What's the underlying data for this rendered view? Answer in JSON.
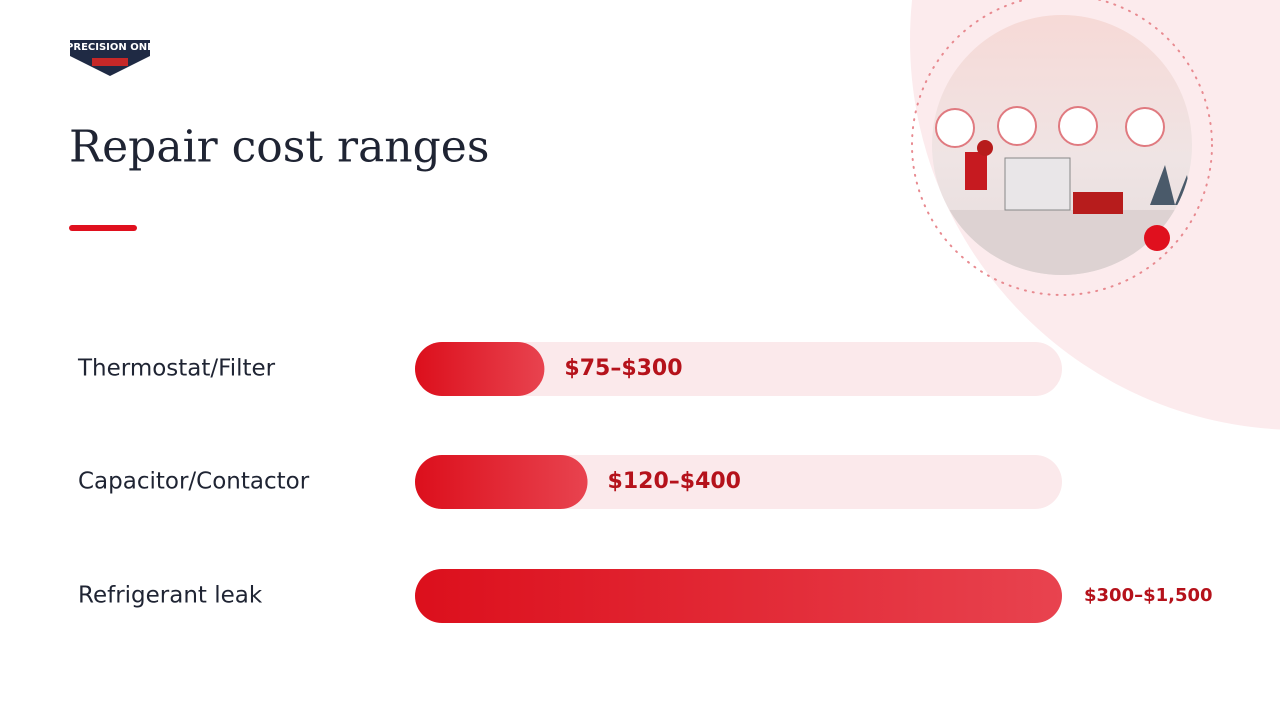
{
  "logo": "PRECISION ONE",
  "chart_data": {
    "type": "bar",
    "orientation": "horizontal",
    "title": "Repair cost ranges",
    "categories": [
      "Thermostat/Filter",
      "Capacitor/Contactor",
      "Refrigerant leak"
    ],
    "values": [
      300,
      400,
      1500
    ],
    "value_labels": [
      "$75–$300",
      "$120–$400",
      "$300–$1,500"
    ],
    "xlim": [
      0,
      1500
    ],
    "color": "#e0101e"
  }
}
